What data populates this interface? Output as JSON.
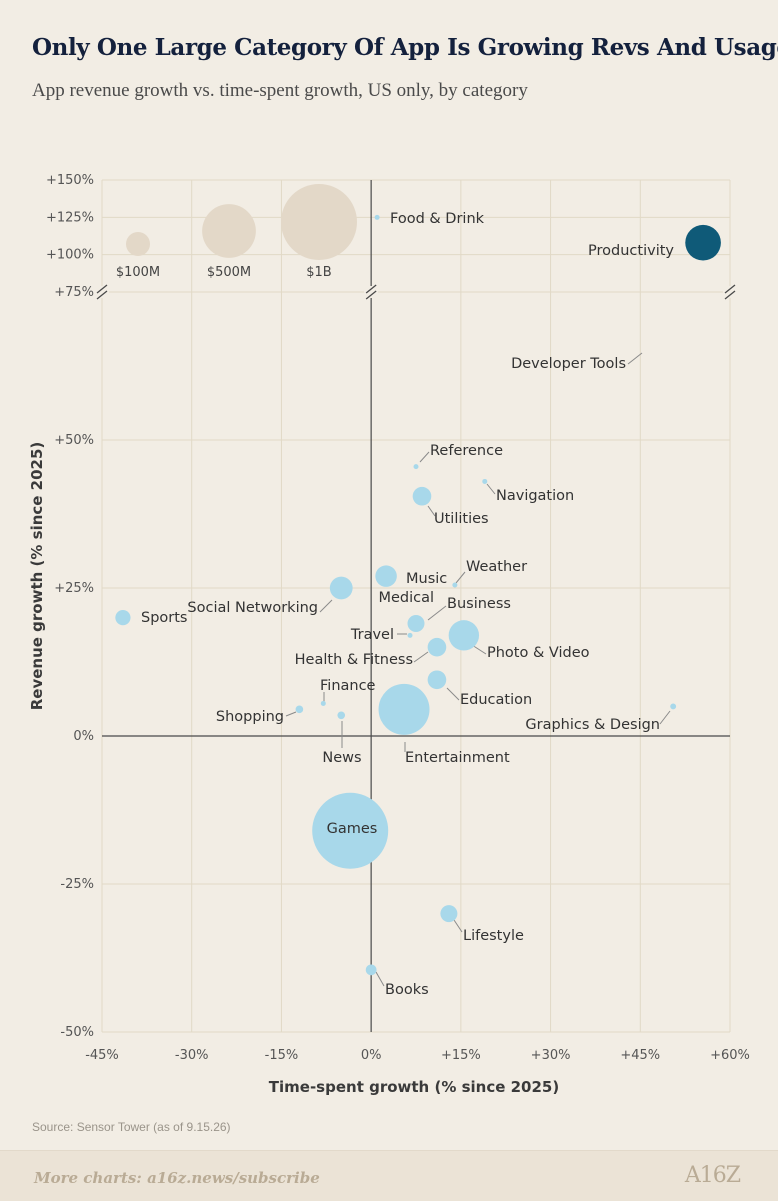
{
  "header": {
    "title": "Only One Large Category Of App Is Growing Revs And Usage",
    "subtitle": "App revenue growth vs. time-spent growth, US only, by category"
  },
  "source": "Source: Sensor Tower (as of 9.15.26)",
  "footer": {
    "link": "More charts: a16z.news/subscribe",
    "logo": "A16Z"
  },
  "chart_data": {
    "type": "scatter",
    "variant": "bubble",
    "xlabel": "Time-spent growth (% since 2025)",
    "ylabel": "Revenue growth (% since 2025)",
    "xlim": [
      -45,
      60
    ],
    "ylim": [
      -50,
      150
    ],
    "y_axis_break": {
      "from": 50,
      "to": 75
    },
    "grid": true,
    "x_ticks": [
      {
        "value": -45,
        "label": "-45%"
      },
      {
        "value": -30,
        "label": "-30%"
      },
      {
        "value": -15,
        "label": "-15%"
      },
      {
        "value": 0,
        "label": "0%"
      },
      {
        "value": 15,
        "label": "+15%"
      },
      {
        "value": 30,
        "label": "+30%"
      },
      {
        "value": 45,
        "label": "+45%"
      },
      {
        "value": 60,
        "label": "+60%"
      }
    ],
    "y_ticks": [
      {
        "value": -50,
        "label": "-50%"
      },
      {
        "value": -25,
        "label": "-25%"
      },
      {
        "value": 0,
        "label": "0%"
      },
      {
        "value": 25,
        "label": "+25%"
      },
      {
        "value": 50,
        "label": "+50%"
      },
      {
        "value": 75,
        "label": "+75%"
      },
      {
        "value": 100,
        "label": "+100%"
      },
      {
        "value": 125,
        "label": "+125%"
      },
      {
        "value": 150,
        "label": "+150%"
      }
    ],
    "colors": {
      "default": "#a8d8ea",
      "highlight": "#0f5a78",
      "legend": "#e3d8c8"
    },
    "size_legend": [
      {
        "label": "$100M",
        "size": 0.1
      },
      {
        "label": "$500M",
        "size": 0.5
      },
      {
        "label": "$1B",
        "size": 1.0
      }
    ],
    "points": [
      {
        "name": "Food & Drink",
        "x": 1,
        "y": 125,
        "size": 0.002
      },
      {
        "name": "Productivity",
        "x": 55.5,
        "y": 108,
        "size": 0.22,
        "highlight": true
      },
      {
        "name": "Developer Tools",
        "x": 51,
        "y": 82,
        "size": 0
      },
      {
        "name": "Reference",
        "x": 7.5,
        "y": 45.5,
        "size": 0.003
      },
      {
        "name": "Navigation",
        "x": 19,
        "y": 43,
        "size": 0.004
      },
      {
        "name": "Utilities",
        "x": 8.5,
        "y": 40.5,
        "size": 0.06
      },
      {
        "name": "Weather",
        "x": 14,
        "y": 25.5,
        "size": 0.001
      },
      {
        "name": "Music",
        "x": 2.5,
        "y": 27,
        "size": 0.08
      },
      {
        "name": "Social Networking",
        "x": -5,
        "y": 25,
        "size": 0.09
      },
      {
        "name": "Sports",
        "x": -41.5,
        "y": 20,
        "size": 0.04
      },
      {
        "name": "Medical",
        "x": 7.5,
        "y": 19,
        "size": 0.05
      },
      {
        "name": "Business",
        "x": 7.5,
        "y": 19,
        "size": 0.001
      },
      {
        "name": "Travel",
        "x": 6.5,
        "y": 17,
        "size": 0.001
      },
      {
        "name": "Photo & Video",
        "x": 15.5,
        "y": 17,
        "size": 0.16
      },
      {
        "name": "Health & Fitness",
        "x": 11,
        "y": 15,
        "size": 0.06
      },
      {
        "name": "Education",
        "x": 11,
        "y": 9.5,
        "size": 0.06
      },
      {
        "name": "Finance",
        "x": -8,
        "y": 5.5,
        "size": 0.002
      },
      {
        "name": "Shopping",
        "x": -12,
        "y": 4.5,
        "size": 0.01
      },
      {
        "name": "News",
        "x": -5,
        "y": 3.5,
        "size": 0.01
      },
      {
        "name": "Entertainment",
        "x": 5.5,
        "y": 4.5,
        "size": 0.45
      },
      {
        "name": "Graphics & Design",
        "x": 50.5,
        "y": 5,
        "size": 0.006
      },
      {
        "name": "Games",
        "x": -3.5,
        "y": -16,
        "size": 1.0
      },
      {
        "name": "Lifestyle",
        "x": 13,
        "y": -30,
        "size": 0.05
      },
      {
        "name": "Books",
        "x": 0,
        "y": -39.5,
        "size": 0.02
      }
    ]
  }
}
